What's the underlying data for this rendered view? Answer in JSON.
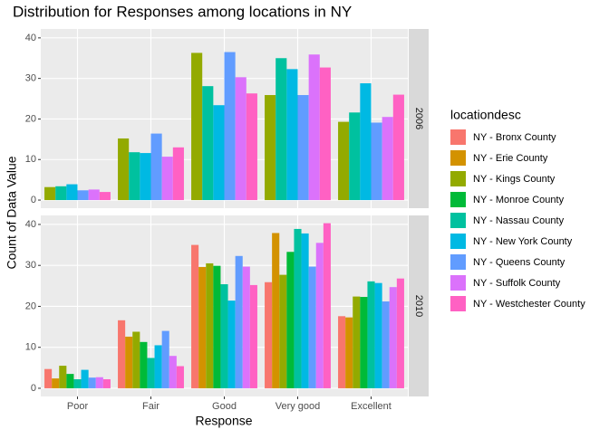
{
  "chart_data": {
    "type": "bar",
    "title": "Distribution for Responses among locations in NY",
    "x_label": "Response",
    "y_label": "Count of Data Value",
    "legend_title": "locationdesc",
    "categories": [
      "Poor",
      "Fair",
      "Good",
      "Very good",
      "Excellent"
    ],
    "ylim": [
      -2,
      42.2
    ],
    "yticks": [
      0,
      10,
      20,
      30,
      40
    ],
    "grid": true,
    "series": [
      {
        "name": "NY - Bronx County",
        "color": "#F8766D"
      },
      {
        "name": "NY - Erie County",
        "color": "#D39200"
      },
      {
        "name": "NY - Kings County",
        "color": "#93AA00"
      },
      {
        "name": "NY - Monroe County",
        "color": "#00BA38"
      },
      {
        "name": "NY - Nassau County",
        "color": "#00C19F"
      },
      {
        "name": "NY - New York County",
        "color": "#00B9E3"
      },
      {
        "name": "NY - Queens County",
        "color": "#619CFF"
      },
      {
        "name": "NY - Suffolk County",
        "color": "#DB72FB"
      },
      {
        "name": "NY - Westchester County",
        "color": "#FF61C3"
      }
    ],
    "panels": [
      {
        "strip": "2006",
        "values": [
          [
            null,
            null,
            null,
            null,
            null
          ],
          [
            null,
            null,
            null,
            null,
            null
          ],
          [
            3.2,
            15.2,
            36.3,
            25.9,
            19.3
          ],
          [
            null,
            null,
            null,
            null,
            null
          ],
          [
            3.4,
            11.8,
            28.1,
            35.0,
            21.6
          ],
          [
            3.9,
            11.6,
            23.4,
            32.3,
            28.8
          ],
          [
            2.4,
            16.4,
            36.5,
            25.9,
            19.1
          ],
          [
            2.6,
            10.7,
            30.3,
            35.9,
            20.5
          ],
          [
            2.0,
            13.0,
            26.3,
            32.7,
            26.0
          ]
        ]
      },
      {
        "strip": "2010",
        "values": [
          [
            4.7,
            16.6,
            35.0,
            25.9,
            17.6
          ],
          [
            2.4,
            12.6,
            29.6,
            37.9,
            17.3
          ],
          [
            5.5,
            13.8,
            30.5,
            27.7,
            22.4
          ],
          [
            3.5,
            11.3,
            29.9,
            33.3,
            22.3
          ],
          [
            2.2,
            7.4,
            25.4,
            38.9,
            26.1
          ],
          [
            4.5,
            10.5,
            21.4,
            37.8,
            25.7
          ],
          [
            2.6,
            14.0,
            32.3,
            29.7,
            21.2
          ],
          [
            2.7,
            7.9,
            29.7,
            35.5,
            24.7
          ],
          [
            2.2,
            5.4,
            25.2,
            40.3,
            26.8
          ]
        ]
      }
    ]
  }
}
